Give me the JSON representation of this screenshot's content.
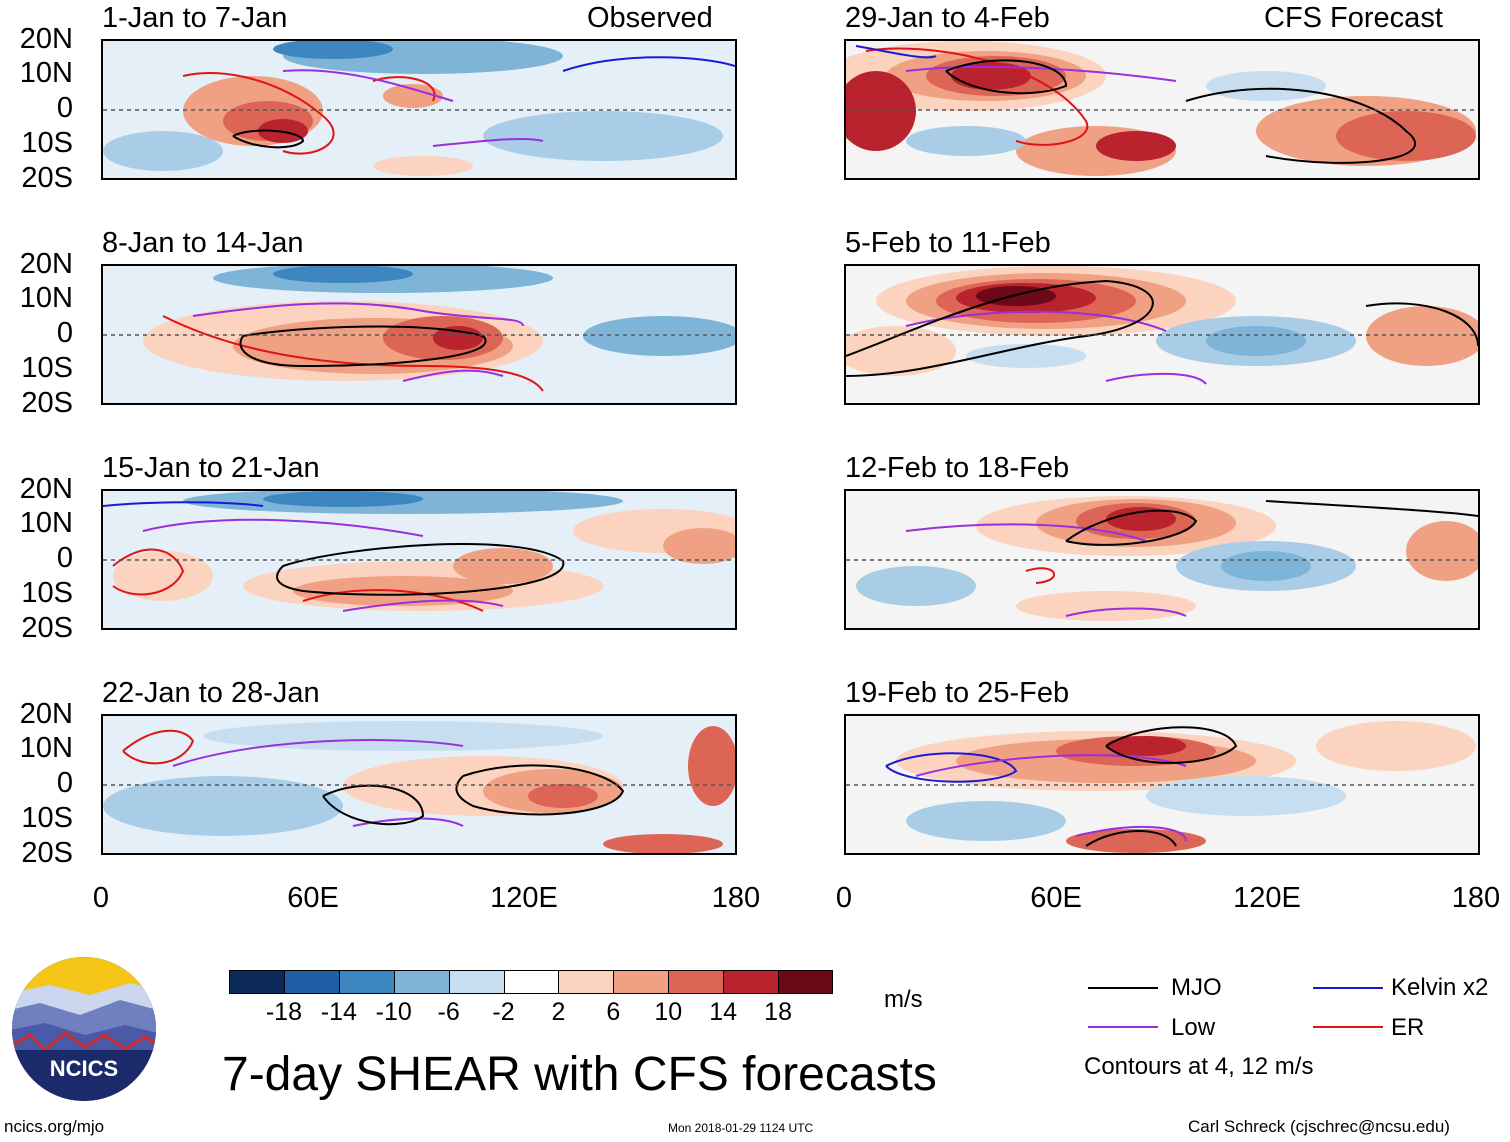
{
  "left_column_label": "Observed",
  "right_column_label": "CFS Forecast",
  "observed_panels": [
    {
      "title": "1-Jan to 7-Jan"
    },
    {
      "title": "8-Jan to 14-Jan"
    },
    {
      "title": "15-Jan to 21-Jan"
    },
    {
      "title": "22-Jan to 28-Jan"
    }
  ],
  "forecast_panels": [
    {
      "title": "29-Jan to 4-Feb"
    },
    {
      "title": "5-Feb to 11-Feb"
    },
    {
      "title": "12-Feb to 18-Feb"
    },
    {
      "title": "19-Feb to 25-Feb"
    }
  ],
  "y_axis_labels": [
    "20N",
    "10N",
    "0",
    "10S",
    "20S"
  ],
  "x_axis_labels": [
    "0",
    "60E",
    "120E",
    "180"
  ],
  "colorbar": {
    "ticks": [
      "-18",
      "-14",
      "-10",
      "-6",
      "-2",
      "2",
      "6",
      "10",
      "14",
      "18"
    ],
    "units": "m/s",
    "colors": [
      "#0b2a5a",
      "#1f5fa8",
      "#3e86c0",
      "#7db4d8",
      "#c6def0",
      "#ffffff",
      "#fbd3be",
      "#f0a184",
      "#dc6556",
      "#b8232e",
      "#6b0a16"
    ]
  },
  "legend": {
    "mjo": {
      "label": "MJO",
      "color": "#000000"
    },
    "kelvin": {
      "label": "Kelvin x2",
      "color": "#1a1ad6"
    },
    "low": {
      "label": "Low",
      "color": "#9a2fe0"
    },
    "er": {
      "label": "ER",
      "color": "#e01414"
    },
    "contour_note": "Contours at 4, 12 m/s"
  },
  "logo_text": "NCICS",
  "main_title": "7-day SHEAR with CFS forecasts",
  "footer": {
    "left": "ncics.org/mjo",
    "center": "Mon 2018-01-29 1124 UTC",
    "right": "Carl Schreck (cjschrec@ncsu.edu)"
  }
}
